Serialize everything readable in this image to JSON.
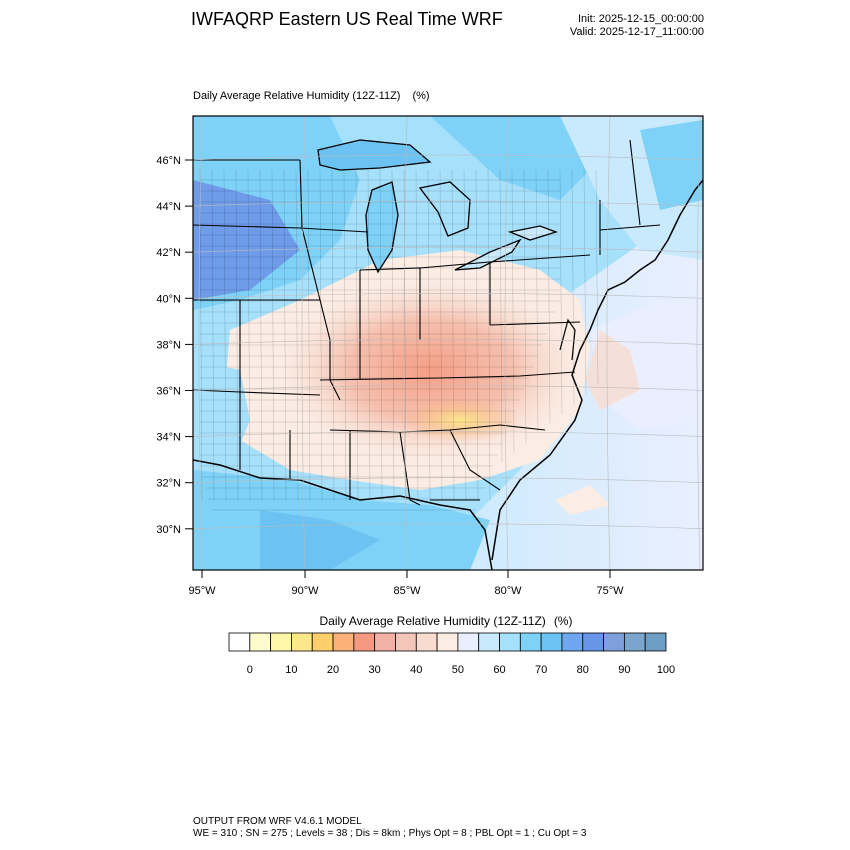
{
  "header": {
    "title": "IWFAQRP Eastern US Real Time WRF",
    "init": "Init: 2025-12-15_00:00:00",
    "valid": "Valid: 2025-12-17_11:00:00"
  },
  "map": {
    "title": "Daily Average Relative Humidity (12Z-11Z)",
    "units": "(%)",
    "lat_labels": [
      "46°N",
      "44°N",
      "42°N",
      "40°N",
      "38°N",
      "36°N",
      "34°N",
      "32°N",
      "30°N"
    ],
    "lon_labels": [
      "95°W",
      "90°W",
      "85°W",
      "80°W",
      "75°W"
    ],
    "domain": {
      "lon_range": [
        -95.5,
        -70.7
      ],
      "lat_range": [
        28.4,
        47.9
      ]
    }
  },
  "colorbar": {
    "title": "Daily Average Relative Humidity (12Z-11Z)",
    "units": "(%)",
    "labels": [
      "0",
      "10",
      "20",
      "30",
      "40",
      "50",
      "60",
      "70",
      "80",
      "90",
      "100"
    ],
    "colors": [
      "#ffffff",
      "#fffccc",
      "#fff7a8",
      "#fde889",
      "#fccf6c",
      "#fbb179",
      "#f59a80",
      "#f2b3a6",
      "#f4c6b9",
      "#f8dccf",
      "#fbece4",
      "#e9efff",
      "#c9e9fd",
      "#a6e0fb",
      "#7ed2f8",
      "#6cc2f2",
      "#6fa7ef",
      "#6796e9",
      "#7e9fdc",
      "#7aa5cd",
      "#6f9ec4"
    ]
  },
  "footer": {
    "line1": "OUTPUT FROM WRF V4.6.1 MODEL",
    "line2": "WE = 310 ; SN = 275 ; Levels = 38 ; Dis = 8km ; Phys Opt = 8 ; PBL Opt = 1 ; Cu Opt = 3"
  }
}
